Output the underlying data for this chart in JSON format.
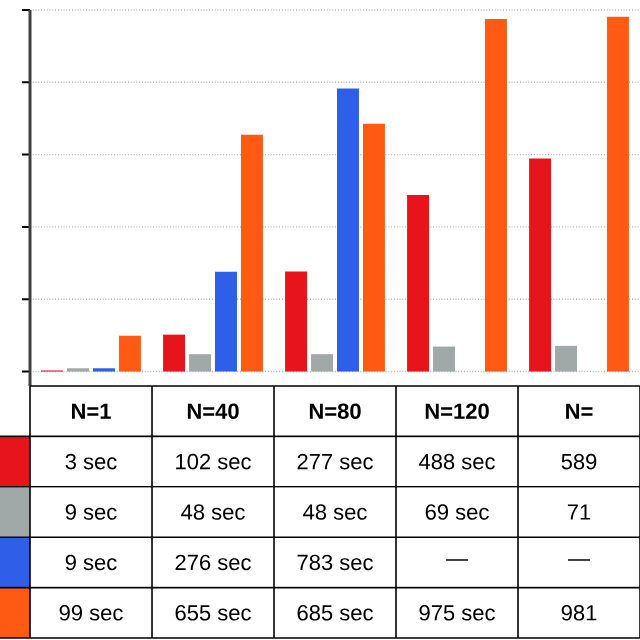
{
  "chart_data": {
    "type": "bar",
    "categories": [
      "N=1",
      "N=40",
      "N=80",
      "N=120",
      "N="
    ],
    "series": [
      {
        "color": "#e8141c",
        "values": [
          3,
          102,
          277,
          488,
          589
        ],
        "value_labels": [
          "3 sec",
          "102 sec",
          "277 sec",
          "488 sec",
          "589"
        ]
      },
      {
        "color": "#a0a8a8",
        "values": [
          9,
          48,
          48,
          69,
          71
        ],
        "value_labels": [
          "9 sec",
          "48 sec",
          "48 sec",
          "69 sec",
          "71"
        ]
      },
      {
        "color": "#2f5fe8",
        "values": [
          9,
          276,
          783,
          null,
          null
        ],
        "value_labels": [
          "9 sec",
          "276 sec",
          "783 sec",
          "—",
          "—"
        ]
      },
      {
        "color": "#ff5a14",
        "values": [
          99,
          655,
          685,
          975,
          981
        ],
        "value_labels": [
          "99 sec",
          "655 sec",
          "685 sec",
          "975 sec",
          "981"
        ]
      }
    ],
    "ylim": [
      -40,
      1000
    ],
    "yticks": [
      {
        "value": 0,
        "label": null
      },
      {
        "value": 200,
        "label": null
      },
      {
        "value": 400,
        "label": null
      },
      {
        "value": 600,
        "label": null
      },
      {
        "value": 800,
        "label": null
      },
      {
        "value": 1000,
        "label": null
      }
    ],
    "grid": "y"
  }
}
